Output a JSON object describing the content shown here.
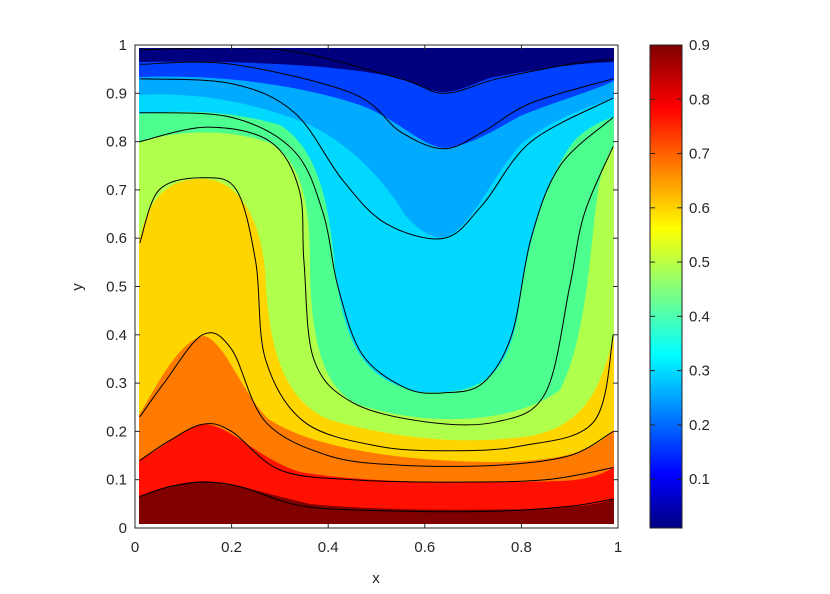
{
  "chart_data": {
    "type": "contour",
    "title": "",
    "xlabel": "x",
    "ylabel": "y",
    "xlim": [
      0,
      1
    ],
    "ylim": [
      0,
      1
    ],
    "x_ticks": [
      "0",
      "0.2",
      "0.4",
      "0.6",
      "0.8",
      "1"
    ],
    "y_ticks": [
      "0",
      "0.1",
      "0.2",
      "0.3",
      "0.4",
      "0.5",
      "0.6",
      "0.7",
      "0.8",
      "0.9",
      "1"
    ],
    "colorbar": {
      "colormap": "jet",
      "range": [
        0.01,
        0.9
      ],
      "ticks": [
        "0.1",
        "0.2",
        "0.3",
        "0.4",
        "0.5",
        "0.6",
        "0.7",
        "0.8",
        "0.9"
      ]
    },
    "contour_levels": [
      0.1,
      0.2,
      0.3,
      0.4,
      0.5,
      0.6,
      0.7,
      0.8,
      0.9
    ],
    "field_description": "scalar field decreasing upward from about 0.9 at y=0 to about 0.01 at y=1, with a warm bulge near x=0.15 and a cold plume reaching down to y≈0.3 near x=0.64",
    "contour_lines": [
      {
        "level": 0.05,
        "points": [
          [
            0.01,
            0.99
          ],
          [
            0.3,
            0.99
          ],
          [
            0.55,
            0.93
          ],
          [
            0.64,
            0.9
          ],
          [
            0.75,
            0.93
          ],
          [
            0.9,
            0.96
          ],
          [
            0.99,
            0.97
          ]
        ]
      },
      {
        "level": 0.15,
        "points": [
          [
            0.01,
            0.96
          ],
          [
            0.2,
            0.96
          ],
          [
            0.45,
            0.9
          ],
          [
            0.55,
            0.82
          ],
          [
            0.64,
            0.785
          ],
          [
            0.72,
            0.82
          ],
          [
            0.82,
            0.88
          ],
          [
            0.99,
            0.93
          ]
        ]
      },
      {
        "level": 0.25,
        "points": [
          [
            0.01,
            0.93
          ],
          [
            0.2,
            0.92
          ],
          [
            0.33,
            0.86
          ],
          [
            0.43,
            0.72
          ],
          [
            0.52,
            0.63
          ],
          [
            0.64,
            0.6
          ],
          [
            0.72,
            0.67
          ],
          [
            0.82,
            0.8
          ],
          [
            0.99,
            0.89
          ]
        ]
      },
      {
        "level": 0.35,
        "points": [
          [
            0.01,
            0.86
          ],
          [
            0.2,
            0.85
          ],
          [
            0.33,
            0.78
          ],
          [
            0.39,
            0.65
          ],
          [
            0.42,
            0.5
          ],
          [
            0.47,
            0.36
          ],
          [
            0.56,
            0.29
          ],
          [
            0.64,
            0.28
          ],
          [
            0.72,
            0.3
          ],
          [
            0.78,
            0.4
          ],
          [
            0.82,
            0.6
          ],
          [
            0.88,
            0.75
          ],
          [
            0.99,
            0.85
          ]
        ]
      },
      {
        "level": 0.45,
        "points": [
          [
            0.01,
            0.8
          ],
          [
            0.15,
            0.83
          ],
          [
            0.28,
            0.8
          ],
          [
            0.34,
            0.7
          ],
          [
            0.35,
            0.55
          ],
          [
            0.37,
            0.35
          ],
          [
            0.45,
            0.26
          ],
          [
            0.6,
            0.22
          ],
          [
            0.75,
            0.22
          ],
          [
            0.85,
            0.28
          ],
          [
            0.9,
            0.5
          ],
          [
            0.93,
            0.65
          ],
          [
            0.99,
            0.79
          ]
        ]
      },
      {
        "level": 0.55,
        "points": [
          [
            0.01,
            0.59
          ],
          [
            0.05,
            0.7
          ],
          [
            0.14,
            0.725
          ],
          [
            0.21,
            0.7
          ],
          [
            0.25,
            0.55
          ],
          [
            0.27,
            0.35
          ],
          [
            0.35,
            0.22
          ],
          [
            0.5,
            0.17
          ],
          [
            0.65,
            0.16
          ],
          [
            0.8,
            0.17
          ],
          [
            0.95,
            0.22
          ],
          [
            0.99,
            0.4
          ]
        ]
      },
      {
        "level": 0.65,
        "points": [
          [
            0.01,
            0.23
          ],
          [
            0.06,
            0.3
          ],
          [
            0.14,
            0.4
          ],
          [
            0.2,
            0.37
          ],
          [
            0.27,
            0.22
          ],
          [
            0.4,
            0.15
          ],
          [
            0.55,
            0.13
          ],
          [
            0.75,
            0.13
          ],
          [
            0.9,
            0.15
          ],
          [
            0.99,
            0.2
          ]
        ]
      },
      {
        "level": 0.75,
        "points": [
          [
            0.01,
            0.14
          ],
          [
            0.07,
            0.18
          ],
          [
            0.14,
            0.215
          ],
          [
            0.2,
            0.2
          ],
          [
            0.3,
            0.12
          ],
          [
            0.45,
            0.1
          ],
          [
            0.65,
            0.095
          ],
          [
            0.85,
            0.1
          ],
          [
            0.99,
            0.125
          ]
        ]
      },
      {
        "level": 0.85,
        "points": [
          [
            0.01,
            0.065
          ],
          [
            0.07,
            0.085
          ],
          [
            0.14,
            0.095
          ],
          [
            0.22,
            0.085
          ],
          [
            0.35,
            0.045
          ],
          [
            0.55,
            0.035
          ],
          [
            0.75,
            0.035
          ],
          [
            0.9,
            0.045
          ],
          [
            0.99,
            0.06
          ]
        ]
      }
    ],
    "band_colors": [
      "#00007f",
      "#0020ff",
      "#00a8ff",
      "#2dffca",
      "#4dff59",
      "#b0ff4d",
      "#ffd500",
      "#ff7a00",
      "#ff1000",
      "#800000"
    ],
    "legend_position": "right (colorbar)",
    "grid": false
  }
}
